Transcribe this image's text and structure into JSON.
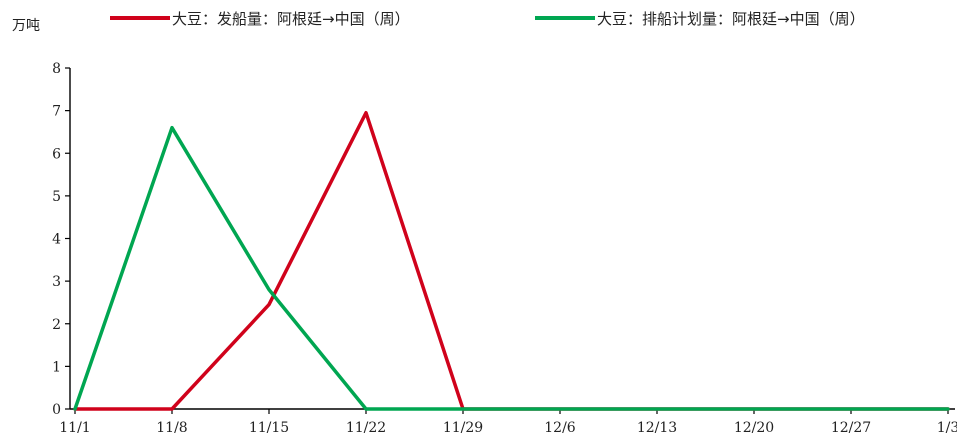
{
  "chart_data": {
    "type": "line",
    "unit_label": "万吨",
    "x": [
      "11/1",
      "11/8",
      "11/15",
      "11/22",
      "11/29",
      "12/6",
      "12/13",
      "12/20",
      "12/27",
      "1/3"
    ],
    "ylim": [
      0,
      8
    ],
    "yticks": [
      "0",
      "1",
      "2",
      "3",
      "4",
      "5",
      "6",
      "7",
      "8"
    ],
    "grid": false,
    "legend_position": "top",
    "series": [
      {
        "name": "大豆：发船量：阿根廷→中国（周）",
        "color": "#d0021b",
        "values": [
          0,
          0,
          2.45,
          6.95,
          0,
          0,
          0,
          0,
          0,
          0
        ]
      },
      {
        "name": "大豆：排船计划量：阿根廷→中国（周）",
        "color": "#00a651",
        "values": [
          0,
          6.6,
          2.8,
          0,
          0,
          0,
          0,
          0,
          0,
          0
        ]
      }
    ]
  }
}
